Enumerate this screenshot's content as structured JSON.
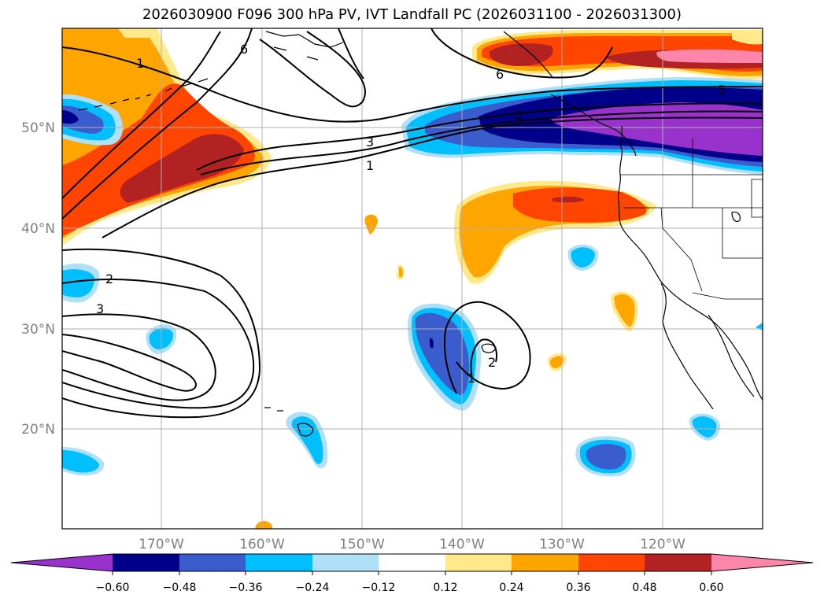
{
  "title": "2026030900 F096 300 hPa PV, IVT Landfall PC (2026031100 - 2026031300)",
  "map": {
    "lat_ticks": [
      "50°N",
      "40°N",
      "30°N",
      "20°N"
    ],
    "lon_ticks": [
      "170°W",
      "160°W",
      "150°W",
      "140°W",
      "130°W",
      "120°W"
    ],
    "gridlines": true,
    "contour_labels": [
      "6",
      "1",
      "6",
      "3",
      "1",
      "2",
      "5",
      "2",
      "3",
      "2",
      "1"
    ]
  },
  "colorbar": {
    "ticks": [
      "−0.60",
      "−0.48",
      "−0.36",
      "−0.24",
      "−0.12",
      "0.12",
      "0.24",
      "0.36",
      "0.48",
      "0.60"
    ],
    "colors": [
      "#9932cc",
      "#00008b",
      "#3a5ccc",
      "#00bfff",
      "#b0e0f8",
      "#ffffff",
      "#ffe98a",
      "#ffa500",
      "#ff4500",
      "#b22222",
      "#ff86aa"
    ]
  }
}
